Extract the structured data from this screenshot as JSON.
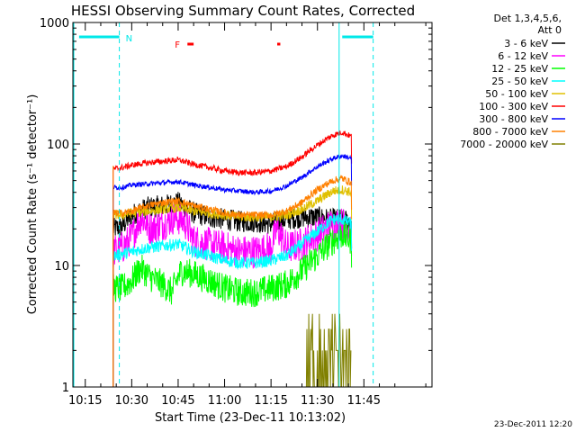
{
  "chart_data": {
    "type": "line",
    "title": "HESSI Observing Summary Count Rates, Corrected",
    "xlabel": "Start Time (23-Dec-11 10:13:02)",
    "ylabel": "Corrected Count Rate (s⁻¹ detector⁻¹)",
    "y_scale": "log",
    "ylim": [
      1,
      1000
    ],
    "xlim_minutes_of_day": [
      611,
      727
    ],
    "x_ticks": [
      "10:15",
      "10:30",
      "10:45",
      "11:00",
      "11:15",
      "11:30",
      "11:45"
    ],
    "y_ticks": [
      "1",
      "10",
      "100",
      "1000"
    ],
    "legend_header": [
      "Det 1,3,4,5,6,",
      "Att 0"
    ],
    "legend_position": "top-right",
    "footer_timestamp": "23-Dec-2011 12:20",
    "flags": [
      {
        "label": "N",
        "color": "#00e8e8",
        "type": "night"
      },
      {
        "label": "F",
        "color": "#ff0000",
        "type": "flare"
      }
    ],
    "night_intervals": [
      [
        "10:13",
        "10:26"
      ],
      [
        "11:38",
        "11:48"
      ]
    ],
    "night_markers": [
      "10:26",
      "11:37",
      "11:48"
    ],
    "flare_intervals": [
      [
        "10:48",
        "10:50"
      ],
      [
        "11:17",
        "11:18"
      ]
    ],
    "data_window": [
      "10:24",
      "11:41"
    ],
    "series": [
      {
        "name": "3 - 6 keV",
        "color": "#000000",
        "noise": 0.09,
        "points": [
          [
            "10:24",
            20
          ],
          [
            "10:27",
            21
          ],
          [
            "10:30",
            26
          ],
          [
            "10:35",
            30
          ],
          [
            "10:40",
            31
          ],
          [
            "10:45",
            33
          ],
          [
            "10:50",
            27
          ],
          [
            "10:55",
            25
          ],
          [
            "11:00",
            24
          ],
          [
            "11:05",
            23
          ],
          [
            "11:10",
            23
          ],
          [
            "11:15",
            22
          ],
          [
            "11:20",
            24
          ],
          [
            "11:25",
            25
          ],
          [
            "11:30",
            25
          ],
          [
            "11:34",
            24
          ],
          [
            "11:37",
            24
          ],
          [
            "11:41",
            23
          ]
        ]
      },
      {
        "name": "6 - 12 keV",
        "color": "#ff00ff",
        "noise": 0.14,
        "points": [
          [
            "10:24",
            13
          ],
          [
            "10:27",
            14
          ],
          [
            "10:30",
            17
          ],
          [
            "10:33",
            25
          ],
          [
            "10:36",
            20
          ],
          [
            "10:40",
            22
          ],
          [
            "10:44",
            25
          ],
          [
            "10:47",
            23
          ],
          [
            "10:50",
            16
          ],
          [
            "10:55",
            15
          ],
          [
            "11:00",
            14
          ],
          [
            "11:05",
            13
          ],
          [
            "11:10",
            13
          ],
          [
            "11:15",
            14
          ],
          [
            "11:17",
            20
          ],
          [
            "11:20",
            14
          ],
          [
            "11:25",
            15
          ],
          [
            "11:30",
            18
          ],
          [
            "11:35",
            22
          ],
          [
            "11:38",
            22
          ],
          [
            "11:41",
            20
          ]
        ]
      },
      {
        "name": "12 - 25 keV",
        "color": "#00ff00",
        "noise": 0.12,
        "points": [
          [
            "10:24",
            6.5
          ],
          [
            "10:27",
            6.5
          ],
          [
            "10:30",
            7.5
          ],
          [
            "10:33",
            9.5
          ],
          [
            "10:36",
            8
          ],
          [
            "10:40",
            7
          ],
          [
            "10:43",
            6
          ],
          [
            "10:46",
            9
          ],
          [
            "10:50",
            8.5
          ],
          [
            "10:55",
            7.5
          ],
          [
            "11:00",
            6.5
          ],
          [
            "11:05",
            6
          ],
          [
            "11:10",
            6
          ],
          [
            "11:15",
            6.5
          ],
          [
            "11:20",
            7
          ],
          [
            "11:25",
            9
          ],
          [
            "11:30",
            12
          ],
          [
            "11:35",
            16
          ],
          [
            "11:38",
            18
          ],
          [
            "11:41",
            16
          ]
        ]
      },
      {
        "name": "25 - 50 keV",
        "color": "#00ffff",
        "noise": 0.05,
        "points": [
          [
            "10:24",
            12
          ],
          [
            "10:27",
            12.5
          ],
          [
            "10:30",
            13
          ],
          [
            "10:35",
            14
          ],
          [
            "10:40",
            14.5
          ],
          [
            "10:45",
            15
          ],
          [
            "10:50",
            13
          ],
          [
            "10:55",
            12
          ],
          [
            "11:00",
            11
          ],
          [
            "11:05",
            10.5
          ],
          [
            "11:10",
            10.5
          ],
          [
            "11:15",
            11
          ],
          [
            "11:20",
            12
          ],
          [
            "11:25",
            15
          ],
          [
            "11:30",
            19
          ],
          [
            "11:35",
            24
          ],
          [
            "11:38",
            24
          ],
          [
            "11:41",
            22
          ]
        ]
      },
      {
        "name": "50 - 100 keV",
        "color": "#e0c000",
        "noise": 0.04,
        "points": [
          [
            "10:24",
            26
          ],
          [
            "10:27",
            26
          ],
          [
            "10:30",
            27
          ],
          [
            "10:35",
            28
          ],
          [
            "10:40",
            29
          ],
          [
            "10:45",
            30
          ],
          [
            "10:50",
            28
          ],
          [
            "10:55",
            27
          ],
          [
            "11:00",
            26
          ],
          [
            "11:05",
            25
          ],
          [
            "11:10",
            25
          ],
          [
            "11:15",
            25
          ],
          [
            "11:20",
            26
          ],
          [
            "11:25",
            29
          ],
          [
            "11:30",
            34
          ],
          [
            "11:35",
            41
          ],
          [
            "11:38",
            42
          ],
          [
            "11:41",
            40
          ]
        ]
      },
      {
        "name": "100 - 300 keV",
        "color": "#ff0000",
        "noise": 0.025,
        "points": [
          [
            "10:24",
            62
          ],
          [
            "10:27",
            64
          ],
          [
            "10:30",
            67
          ],
          [
            "10:35",
            70
          ],
          [
            "10:40",
            72
          ],
          [
            "10:45",
            74
          ],
          [
            "10:50",
            68
          ],
          [
            "10:55",
            64
          ],
          [
            "11:00",
            60
          ],
          [
            "11:05",
            58
          ],
          [
            "11:10",
            58
          ],
          [
            "11:15",
            60
          ],
          [
            "11:20",
            65
          ],
          [
            "11:25",
            78
          ],
          [
            "11:30",
            98
          ],
          [
            "11:35",
            118
          ],
          [
            "11:38",
            125
          ],
          [
            "11:41",
            115
          ]
        ]
      },
      {
        "name": "300 - 800 keV",
        "color": "#0000ff",
        "noise": 0.02,
        "points": [
          [
            "10:24",
            44
          ],
          [
            "10:27",
            44
          ],
          [
            "10:30",
            46
          ],
          [
            "10:35",
            47
          ],
          [
            "10:40",
            48
          ],
          [
            "10:45",
            49
          ],
          [
            "10:50",
            46
          ],
          [
            "10:55",
            44
          ],
          [
            "11:00",
            42
          ],
          [
            "11:05",
            41
          ],
          [
            "11:10",
            40
          ],
          [
            "11:15",
            41
          ],
          [
            "11:20",
            45
          ],
          [
            "11:25",
            53
          ],
          [
            "11:30",
            65
          ],
          [
            "11:35",
            76
          ],
          [
            "11:38",
            80
          ],
          [
            "11:41",
            76
          ]
        ]
      },
      {
        "name": "800 - 7000 keV",
        "color": "#ff8000",
        "noise": 0.03,
        "points": [
          [
            "10:24",
            27
          ],
          [
            "10:27",
            27
          ],
          [
            "10:30",
            28
          ],
          [
            "10:35",
            31
          ],
          [
            "10:40",
            33
          ],
          [
            "10:45",
            34
          ],
          [
            "10:50",
            31
          ],
          [
            "10:55",
            29
          ],
          [
            "11:00",
            27
          ],
          [
            "11:05",
            26
          ],
          [
            "11:10",
            26
          ],
          [
            "11:15",
            26
          ],
          [
            "11:20",
            28
          ],
          [
            "11:25",
            33
          ],
          [
            "11:30",
            42
          ],
          [
            "11:35",
            50
          ],
          [
            "11:38",
            52
          ],
          [
            "11:41",
            48
          ]
        ]
      },
      {
        "name": "7000 - 20000 keV",
        "color": "#808000",
        "noise": 0.0,
        "points": [
          [
            "11:26",
            1
          ],
          [
            "11:27",
            1.8
          ],
          [
            "11:30",
            2.0
          ],
          [
            "11:33",
            2.2
          ],
          [
            "11:35",
            2.5
          ],
          [
            "11:38",
            2.3
          ],
          [
            "11:41",
            1.5
          ]
        ]
      }
    ]
  }
}
